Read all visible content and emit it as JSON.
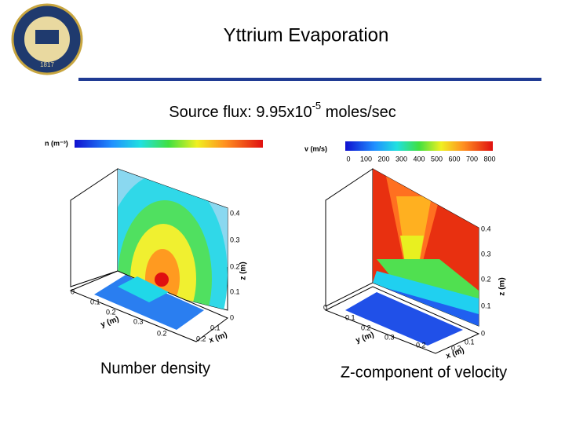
{
  "logo": {
    "year": "1817"
  },
  "header": {
    "title": "Yttrium Evaporation"
  },
  "subtitle": {
    "prefix": "Source flux: 9.95x10",
    "exponent": "-5",
    "suffix": " moles/sec"
  },
  "plots": [
    {
      "legend_title": "n (m⁻³)",
      "axis_labels": {
        "x": "x (m)",
        "y": "y (m)",
        "z": "z (m)"
      },
      "z_ticks": [
        "0",
        "0.1",
        "0.2",
        "0.3",
        "0.4"
      ],
      "y_ticks": [
        "0",
        "0.1",
        "0.2",
        "0.3"
      ],
      "x_ticks": [
        "0.1",
        "0.2",
        "0.2"
      ],
      "caption": "Number density"
    },
    {
      "legend_title": "v (m/s)",
      "legend_ticks": [
        "0",
        "100",
        "200",
        "300",
        "400",
        "500",
        "600",
        "700",
        "800"
      ],
      "axis_labels": {
        "x": "x (m)",
        "y": "y (m)",
        "z": "z (m)"
      },
      "z_ticks": [
        "0",
        "0.1",
        "0.2",
        "0.3",
        "0.4"
      ],
      "y_ticks": [
        "0",
        "0.1",
        "0.2",
        "0.3"
      ],
      "x_ticks": [
        "0.1",
        "0.2",
        "0.2"
      ],
      "caption": "Z-component of velocity"
    }
  ]
}
